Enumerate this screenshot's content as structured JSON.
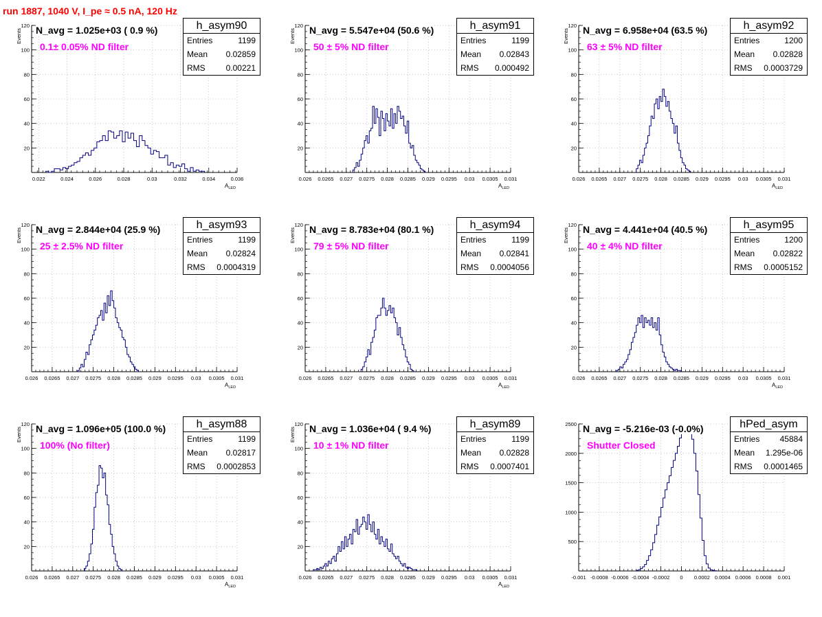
{
  "run_title": "run 1887,  1040 V, I_pe ≈ 0.5 nA, 120 Hz",
  "stat_labels": {
    "entries": "Entries",
    "mean": "Mean",
    "rms": "RMS"
  },
  "chart_data": [
    {
      "type": "histogram",
      "title": "h_asym90",
      "header": "N_avg = 1.025e+03 ( 0.9 %)",
      "filter_label": "0.1± 0.05% ND filter",
      "xlabel": "A",
      "xlabel_sub": "LED",
      "ylabel": "Events",
      "xlim": [
        0.0215,
        0.036
      ],
      "ylim": [
        0,
        120
      ],
      "x_ticks": [
        0.022,
        0.024,
        0.026,
        0.028,
        0.03,
        0.032,
        0.034,
        0.036
      ],
      "x_tick_labels": [
        "0.022",
        "0.024",
        "0.026",
        "0.028",
        "0.03",
        "0.032",
        "0.034",
        "0.036"
      ],
      "y_ticks": [
        20,
        40,
        60,
        80,
        100,
        120
      ],
      "y_tick_labels": [
        "20",
        "40",
        "60",
        "80",
        "100",
        "120"
      ],
      "grid": true,
      "stats": {
        "entries": "1199",
        "mean": "0.02859",
        "rms": "0.00221"
      },
      "bin_low": 0.0225,
      "bin_width": 0.0002,
      "values": [
        1,
        0,
        1,
        3,
        3,
        2,
        4,
        3,
        5,
        6,
        8,
        9,
        12,
        14,
        16,
        14,
        18,
        20,
        25,
        26,
        30,
        26,
        34,
        33,
        28,
        30,
        34,
        25,
        33,
        28,
        32,
        26,
        21,
        30,
        26,
        22,
        20,
        15,
        18,
        17,
        12,
        12,
        14,
        6,
        8,
        4,
        6,
        5,
        7,
        3,
        1,
        4,
        1,
        2,
        1,
        1
      ]
    },
    {
      "type": "histogram",
      "title": "h_asym91",
      "header": "N_avg = 5.547e+04 (50.6 %)",
      "filter_label": "50 ± 5% ND filter",
      "xlabel": "A",
      "xlabel_sub": "LED",
      "ylabel": "Events",
      "xlim": [
        0.026,
        0.031
      ],
      "ylim": [
        0,
        120
      ],
      "x_ticks": [
        0.026,
        0.0265,
        0.027,
        0.0275,
        0.028,
        0.0285,
        0.029,
        0.0295,
        0.03,
        0.0305,
        0.031
      ],
      "x_tick_labels": [
        "0.026",
        "0.0265",
        "0.027",
        "0.0275",
        "0.028",
        "0.0285",
        "0.029",
        "0.0295",
        "0.03",
        "0.0305",
        "0.031"
      ],
      "y_ticks": [
        20,
        40,
        60,
        80,
        100,
        120
      ],
      "y_tick_labels": [
        "20",
        "40",
        "60",
        "80",
        "100",
        "120"
      ],
      "grid": true,
      "stats": {
        "entries": "1199",
        "mean": "0.02843",
        "rms": "0.000492"
      },
      "bin_low": 0.02716,
      "bin_width": 4e-05,
      "values": [
        2,
        4,
        8,
        5,
        10,
        15,
        20,
        26,
        30,
        24,
        34,
        36,
        54,
        40,
        52,
        45,
        30,
        50,
        44,
        34,
        48,
        42,
        38,
        52,
        36,
        48,
        40,
        54,
        50,
        44,
        46,
        38,
        32,
        42,
        24,
        20,
        22,
        14,
        10,
        8,
        6,
        3,
        2,
        1
      ]
    },
    {
      "type": "histogram",
      "title": "h_asym92",
      "header": "N_avg = 6.958e+04 (63.5 %)",
      "filter_label": "63 ± 5% ND filter",
      "xlabel": "A",
      "xlabel_sub": "LED",
      "ylabel": "Events",
      "xlim": [
        0.026,
        0.031
      ],
      "ylim": [
        0,
        120
      ],
      "x_ticks": [
        0.026,
        0.0265,
        0.027,
        0.0275,
        0.028,
        0.0285,
        0.029,
        0.0295,
        0.03,
        0.0305,
        0.031
      ],
      "x_tick_labels": [
        "0.026",
        "0.0265",
        "0.027",
        "0.0275",
        "0.028",
        "0.0285",
        "0.029",
        "0.0295",
        "0.03",
        "0.0305",
        "0.031"
      ],
      "y_ticks": [
        20,
        40,
        60,
        80,
        100,
        120
      ],
      "y_tick_labels": [
        "20",
        "40",
        "60",
        "80",
        "100",
        "120"
      ],
      "grid": true,
      "stats": {
        "entries": "1200",
        "mean": "0.02828",
        "rms": "0.0003729"
      },
      "bin_low": 0.0274,
      "bin_width": 4e-05,
      "values": [
        3,
        6,
        10,
        8,
        14,
        20,
        24,
        30,
        38,
        46,
        44,
        56,
        60,
        52,
        62,
        58,
        68,
        62,
        54,
        58,
        50,
        44,
        40,
        32,
        38,
        24,
        18,
        12,
        8,
        6,
        3,
        2,
        1
      ]
    },
    {
      "type": "histogram",
      "title": "h_asym93",
      "header": "N_avg = 2.844e+04 (25.9 %)",
      "filter_label": "25 ± 2.5% ND filter",
      "xlabel": "A",
      "xlabel_sub": "LED",
      "ylabel": "Events",
      "xlim": [
        0.026,
        0.031
      ],
      "ylim": [
        0,
        120
      ],
      "x_ticks": [
        0.026,
        0.0265,
        0.027,
        0.0275,
        0.028,
        0.0285,
        0.029,
        0.0295,
        0.03,
        0.0305,
        0.031
      ],
      "x_tick_labels": [
        "0.026",
        "0.0265",
        "0.027",
        "0.0275",
        "0.028",
        "0.0285",
        "0.029",
        "0.0295",
        "0.03",
        "0.0305",
        "0.031"
      ],
      "y_ticks": [
        20,
        40,
        60,
        80,
        100,
        120
      ],
      "y_tick_labels": [
        "20",
        "40",
        "60",
        "80",
        "100",
        "120"
      ],
      "grid": true,
      "stats": {
        "entries": "1199",
        "mean": "0.02824",
        "rms": "0.0004319"
      },
      "bin_low": 0.02712,
      "bin_width": 4e-05,
      "values": [
        1,
        3,
        6,
        4,
        10,
        16,
        14,
        22,
        26,
        30,
        34,
        38,
        44,
        46,
        50,
        42,
        56,
        48,
        62,
        54,
        66,
        58,
        52,
        44,
        40,
        36,
        34,
        28,
        26,
        20,
        14,
        12,
        8,
        6,
        4,
        2,
        1
      ]
    },
    {
      "type": "histogram",
      "title": "h_asym94",
      "header": "N_avg = 8.783e+04 (80.1 %)",
      "filter_label": "79 ± 5% ND filter",
      "xlabel": "A",
      "xlabel_sub": "LED",
      "ylabel": "Events",
      "xlim": [
        0.026,
        0.031
      ],
      "ylim": [
        0,
        120
      ],
      "x_ticks": [
        0.026,
        0.0265,
        0.027,
        0.0275,
        0.028,
        0.0285,
        0.029,
        0.0295,
        0.03,
        0.0305,
        0.031
      ],
      "x_tick_labels": [
        "0.026",
        "0.0265",
        "0.027",
        "0.0275",
        "0.028",
        "0.0285",
        "0.029",
        "0.0295",
        "0.03",
        "0.0305",
        "0.031"
      ],
      "y_ticks": [
        20,
        40,
        60,
        80,
        100,
        120
      ],
      "y_tick_labels": [
        "20",
        "40",
        "60",
        "80",
        "100",
        "120"
      ],
      "grid": true,
      "stats": {
        "entries": "1199",
        "mean": "0.02841",
        "rms": "0.0004056"
      },
      "bin_low": 0.02736,
      "bin_width": 4e-05,
      "values": [
        2,
        4,
        8,
        12,
        18,
        14,
        24,
        28,
        34,
        44,
        46,
        46,
        52,
        60,
        52,
        46,
        50,
        54,
        48,
        52,
        44,
        40,
        30,
        36,
        28,
        22,
        18,
        12,
        8,
        6,
        2,
        1
      ]
    },
    {
      "type": "histogram",
      "title": "h_asym95",
      "header": "N_avg = 4.441e+04 (40.5 %)",
      "filter_label": "40 ± 4% ND filter",
      "xlabel": "A",
      "xlabel_sub": "LED",
      "ylabel": "Events",
      "xlim": [
        0.026,
        0.031
      ],
      "ylim": [
        0,
        120
      ],
      "x_ticks": [
        0.026,
        0.0265,
        0.027,
        0.0275,
        0.028,
        0.0285,
        0.029,
        0.0295,
        0.03,
        0.0305,
        0.031
      ],
      "x_tick_labels": [
        "0.026",
        "0.0265",
        "0.027",
        "0.0275",
        "0.028",
        "0.0285",
        "0.029",
        "0.0295",
        "0.03",
        "0.0305",
        "0.031"
      ],
      "y_ticks": [
        20,
        40,
        60,
        80,
        100,
        120
      ],
      "y_tick_labels": [
        "20",
        "40",
        "60",
        "80",
        "100",
        "120"
      ],
      "grid": true,
      "stats": {
        "entries": "1200",
        "mean": "0.02822",
        "rms": "0.0005152"
      },
      "bin_low": 0.02692,
      "bin_width": 4e-05,
      "values": [
        1,
        2,
        4,
        3,
        6,
        8,
        10,
        14,
        18,
        24,
        28,
        32,
        38,
        44,
        40,
        46,
        36,
        44,
        40,
        42,
        38,
        44,
        36,
        40,
        34,
        44,
        30,
        22,
        16,
        12,
        8,
        6,
        4,
        3,
        2,
        1,
        2,
        1,
        1
      ]
    },
    {
      "type": "histogram",
      "title": "h_asym88",
      "header": "N_avg = 1.096e+05 (100.0 %)",
      "filter_label": "100% (No filter)",
      "xlabel": "A",
      "xlabel_sub": "LED",
      "ylabel": "Events",
      "xlim": [
        0.026,
        0.031
      ],
      "ylim": [
        0,
        120
      ],
      "x_ticks": [
        0.026,
        0.0265,
        0.027,
        0.0275,
        0.028,
        0.0285,
        0.029,
        0.0295,
        0.03,
        0.0305,
        0.031
      ],
      "x_tick_labels": [
        "0.026",
        "0.0265",
        "0.027",
        "0.0275",
        "0.028",
        "0.0285",
        "0.029",
        "0.0295",
        "0.03",
        "0.0305",
        "0.031"
      ],
      "y_ticks": [
        20,
        40,
        60,
        80,
        100,
        120
      ],
      "y_tick_labels": [
        "20",
        "40",
        "60",
        "80",
        "100",
        "120"
      ],
      "grid": true,
      "stats": {
        "entries": "1199",
        "mean": "0.02817",
        "rms": "0.0002853"
      },
      "bin_low": 0.02728,
      "bin_width": 4e-05,
      "values": [
        2,
        4,
        8,
        14,
        22,
        34,
        52,
        64,
        70,
        86,
        84,
        76,
        80,
        62,
        54,
        38,
        30,
        20,
        14,
        8,
        4,
        2,
        1
      ]
    },
    {
      "type": "histogram",
      "title": "h_asym89",
      "header": "N_avg = 1.036e+04 ( 9.4 %)",
      "filter_label": "10 ± 1% ND filter",
      "xlabel": "A",
      "xlabel_sub": "LED",
      "ylabel": "Events",
      "xlim": [
        0.026,
        0.031
      ],
      "ylim": [
        0,
        120
      ],
      "x_ticks": [
        0.026,
        0.0265,
        0.027,
        0.0275,
        0.028,
        0.0285,
        0.029,
        0.0295,
        0.03,
        0.0305,
        0.031
      ],
      "x_tick_labels": [
        "0.026",
        "0.0265",
        "0.027",
        "0.0275",
        "0.028",
        "0.0285",
        "0.029",
        "0.0295",
        "0.03",
        "0.0305",
        "0.031"
      ],
      "y_ticks": [
        20,
        40,
        60,
        80,
        100,
        120
      ],
      "y_tick_labels": [
        "20",
        "40",
        "60",
        "80",
        "100",
        "120"
      ],
      "grid": true,
      "stats": {
        "entries": "1199",
        "mean": "0.02828",
        "rms": "0.0007401"
      },
      "bin_low": 0.0262,
      "bin_width": 4e-05,
      "values": [
        1,
        1,
        2,
        1,
        3,
        2,
        4,
        6,
        4,
        8,
        6,
        10,
        12,
        8,
        14,
        20,
        16,
        24,
        18,
        28,
        20,
        26,
        30,
        22,
        34,
        32,
        42,
        30,
        36,
        38,
        44,
        40,
        34,
        46,
        38,
        32,
        40,
        30,
        26,
        34,
        22,
        28,
        24,
        20,
        26,
        18,
        16,
        22,
        14,
        12,
        10,
        12,
        8,
        6,
        4,
        6,
        3,
        2,
        3,
        2,
        1,
        1,
        1
      ]
    },
    {
      "type": "histogram",
      "title": "hPed_asym",
      "header": "N_avg = -5.216e-03 (-0.0%)",
      "filter_label": "Shutter Closed",
      "xlabel": "",
      "xlabel_sub": "",
      "ylabel": "",
      "xlim": [
        -0.001,
        0.001
      ],
      "ylim": [
        0,
        2500
      ],
      "x_ticks": [
        -0.001,
        -0.0008,
        -0.0006,
        -0.0004,
        -0.0002,
        0,
        0.0002,
        0.0004,
        0.0006,
        0.0008,
        0.001
      ],
      "x_tick_labels": [
        "-0.001",
        "-0.0008",
        "-0.0006",
        "-0.0004",
        "-0.0002",
        "0",
        "0.0002",
        "0.0004",
        "0.0006",
        "0.0008",
        "0.001"
      ],
      "y_ticks": [
        500,
        1000,
        1500,
        2000,
        2500
      ],
      "y_tick_labels": [
        "500",
        "1000",
        "1500",
        "2000",
        "2500"
      ],
      "grid": true,
      "stats": {
        "entries": "45884",
        "mean": "1.295e-06",
        "rms": "0.0001465"
      },
      "bin_low": -0.00044,
      "bin_width": 2e-05,
      "values": [
        10,
        20,
        40,
        70,
        110,
        180,
        260,
        360,
        480,
        620,
        780,
        920,
        1080,
        1240,
        1380,
        1500,
        1620,
        1760,
        1880,
        2000,
        2120,
        2260,
        2380,
        2460,
        2500,
        2480,
        2380,
        2240,
        2000,
        1700,
        1300,
        900,
        520,
        260,
        120,
        50,
        20,
        10,
        5
      ]
    }
  ]
}
